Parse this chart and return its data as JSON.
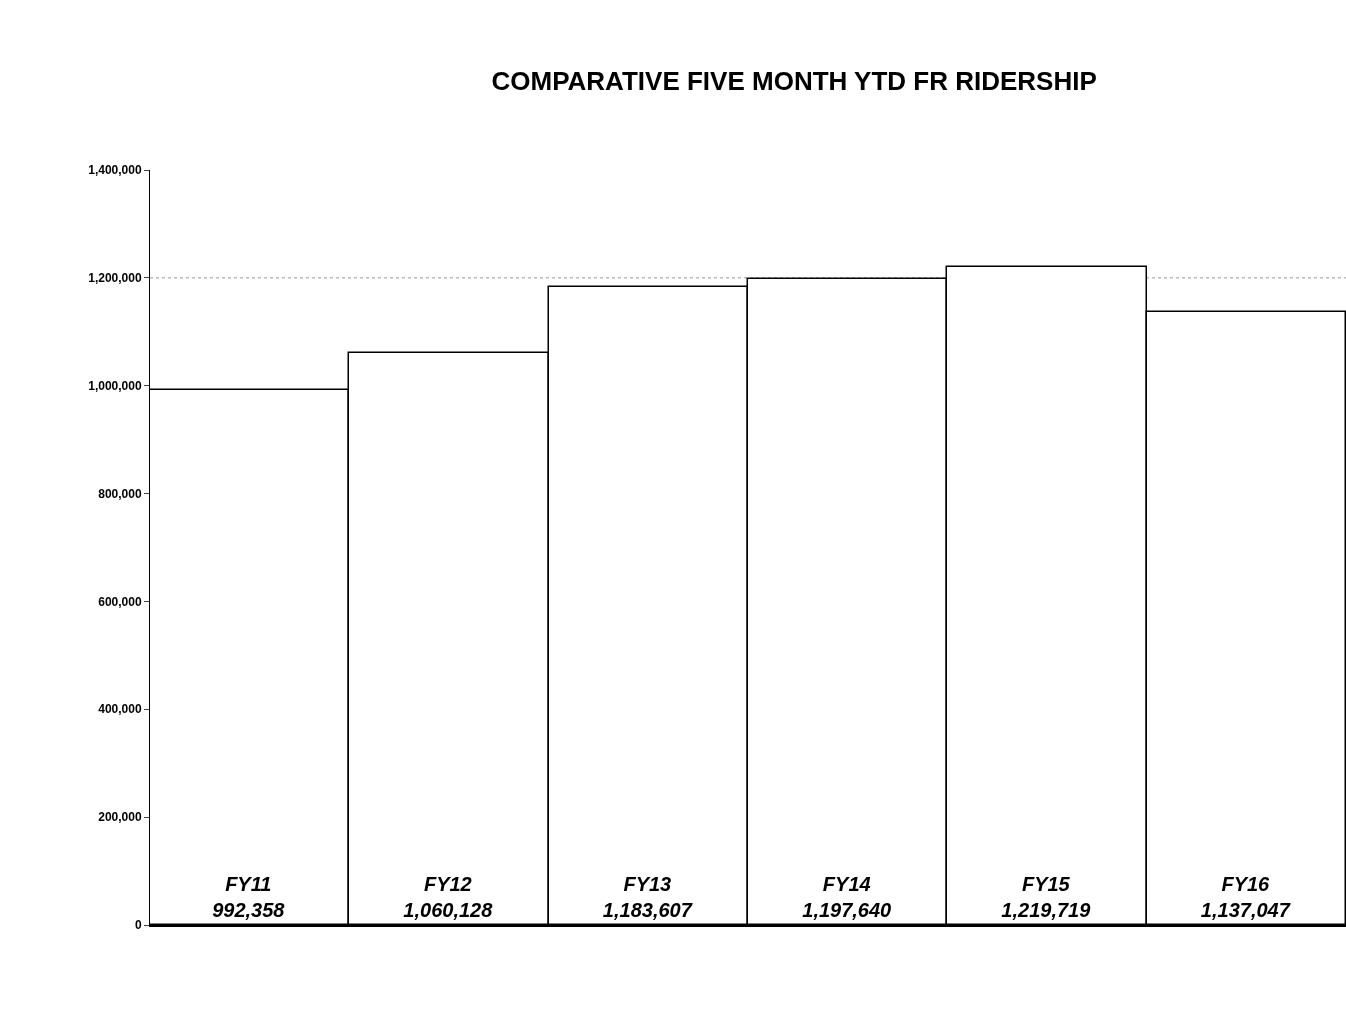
{
  "chart_data": {
    "type": "bar",
    "title": "COMPARATIVE FIVE MONTH YTD FR RIDERSHIP",
    "categories": [
      "FY11",
      "FY12",
      "FY13",
      "FY14",
      "FY15",
      "FY16"
    ],
    "values": [
      992358,
      1060128,
      1183607,
      1197640,
      1219719,
      1137047
    ],
    "color": "#ffffff",
    "ylim": [
      0,
      1400000
    ],
    "yticks": [
      {
        "value": 0,
        "label": "0"
      },
      {
        "value": 200000,
        "label": "200,000"
      },
      {
        "value": 400000,
        "label": "400,000"
      },
      {
        "value": 600000,
        "label": "600,000"
      },
      {
        "value": 800000,
        "label": "800,000"
      },
      {
        "value": 1000000,
        "label": "1,000,000"
      },
      {
        "value": 1200000,
        "label": "1,200,000"
      },
      {
        "value": 1400000,
        "label": "1,400,000"
      }
    ],
    "ref_lines": [
      {
        "axis": "y",
        "value": 1200000,
        "label": null,
        "color": "#999999",
        "line_style": "dotted"
      }
    ],
    "value_labels": [
      "992,358",
      "1,060,128",
      "1,183,607",
      "1,197,640",
      "1,219,719",
      "1,137,047"
    ],
    "tick_labels": "y"
  }
}
